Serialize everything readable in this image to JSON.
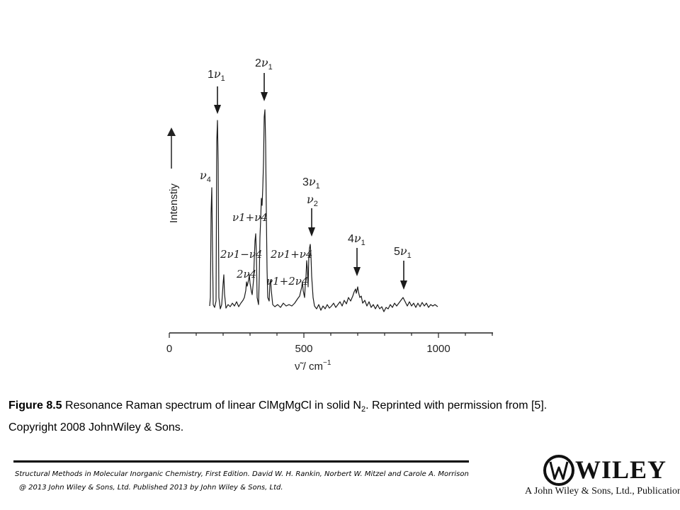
{
  "figure": {
    "axis": {
      "y_label": "Intenstiy",
      "x_label": "ν̃ / cm",
      "x_label_exp": "−1",
      "ticks": [
        "0",
        "500",
        "1000"
      ],
      "tick_values": [
        0,
        500,
        1000
      ]
    },
    "annotations": [
      {
        "id": "1v1",
        "coef": "1",
        "sym": "ν",
        "sub": "1",
        "arrow": true
      },
      {
        "id": "2v1",
        "coef": "2",
        "sym": "ν",
        "sub": "1",
        "arrow": true
      },
      {
        "id": "v4",
        "coef": "",
        "sym": "ν",
        "sub": "4",
        "arrow": false
      },
      {
        "id": "3v1",
        "coef": "3",
        "sym": "ν",
        "sub": "1",
        "arrow": false
      },
      {
        "id": "v2",
        "coef": "",
        "sym": "ν",
        "sub": "2",
        "arrow": true
      },
      {
        "id": "v1pv4",
        "text": "ν1+ν4"
      },
      {
        "id": "2v1mv4",
        "text": "2ν1−ν4"
      },
      {
        "id": "2v1pv4",
        "text": "2ν1+ν4"
      },
      {
        "id": "2v4",
        "text": "2ν4"
      },
      {
        "id": "v1p2v4",
        "text": "ν1+2ν4"
      },
      {
        "id": "4v1",
        "coef": "4",
        "sym": "ν",
        "sub": "1",
        "arrow": true
      },
      {
        "id": "5v1",
        "coef": "5",
        "sym": "ν",
        "sub": "1",
        "arrow": true
      }
    ]
  },
  "caption": {
    "label": "Figure 8.5",
    "text_a": "Resonance Raman spectrum of linear ClMgMgCl in solid N",
    "sub": "2",
    "text_b": ". Reprinted with permission from [5].",
    "line2": "Copyright 2008 JohnWiley & Sons."
  },
  "footer": {
    "line1": "Structural Methods in Molecular Inorganic Chemistry, First Edition. David W. H. Rankin, Norbert W. Mitzel and Carole A. Morrison",
    "line2": "@ 2013 John Wiley & Sons, Ltd. Published 2013 by John Wiley & Sons, Ltd."
  },
  "publisher": {
    "brand": "WILEY",
    "tagline": "A John Wiley & Sons, Ltd., Publication"
  }
}
